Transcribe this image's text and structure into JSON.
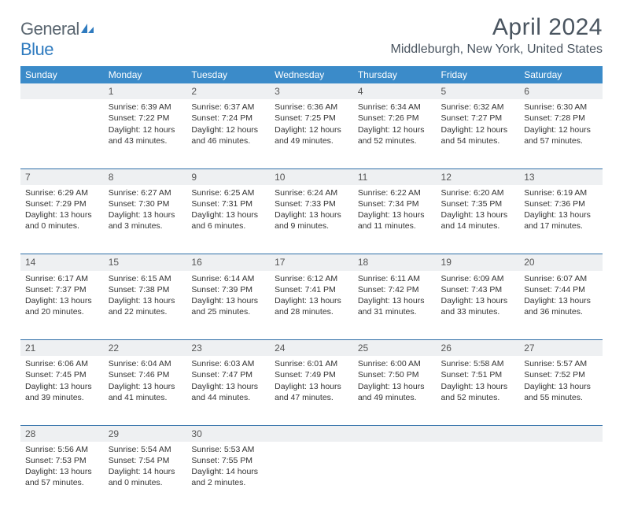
{
  "logo": {
    "word1": "General",
    "word2": "Blue"
  },
  "title": "April 2024",
  "location": "Middleburgh, New York, United States",
  "colors": {
    "header_bg": "#3b8bc9",
    "header_text": "#ffffff",
    "daynum_bg": "#eef0f2",
    "row_border": "#2f6fa8",
    "text": "#333333",
    "title_text": "#4a5560",
    "logo_gray": "#5a6670",
    "logo_blue": "#2f7bbf"
  },
  "day_headers": [
    "Sunday",
    "Monday",
    "Tuesday",
    "Wednesday",
    "Thursday",
    "Friday",
    "Saturday"
  ],
  "weeks": [
    [
      null,
      {
        "n": "1",
        "sr": "6:39 AM",
        "ss": "7:22 PM",
        "dl": "12 hours and 43 minutes."
      },
      {
        "n": "2",
        "sr": "6:37 AM",
        "ss": "7:24 PM",
        "dl": "12 hours and 46 minutes."
      },
      {
        "n": "3",
        "sr": "6:36 AM",
        "ss": "7:25 PM",
        "dl": "12 hours and 49 minutes."
      },
      {
        "n": "4",
        "sr": "6:34 AM",
        "ss": "7:26 PM",
        "dl": "12 hours and 52 minutes."
      },
      {
        "n": "5",
        "sr": "6:32 AM",
        "ss": "7:27 PM",
        "dl": "12 hours and 54 minutes."
      },
      {
        "n": "6",
        "sr": "6:30 AM",
        "ss": "7:28 PM",
        "dl": "12 hours and 57 minutes."
      }
    ],
    [
      {
        "n": "7",
        "sr": "6:29 AM",
        "ss": "7:29 PM",
        "dl": "13 hours and 0 minutes."
      },
      {
        "n": "8",
        "sr": "6:27 AM",
        "ss": "7:30 PM",
        "dl": "13 hours and 3 minutes."
      },
      {
        "n": "9",
        "sr": "6:25 AM",
        "ss": "7:31 PM",
        "dl": "13 hours and 6 minutes."
      },
      {
        "n": "10",
        "sr": "6:24 AM",
        "ss": "7:33 PM",
        "dl": "13 hours and 9 minutes."
      },
      {
        "n": "11",
        "sr": "6:22 AM",
        "ss": "7:34 PM",
        "dl": "13 hours and 11 minutes."
      },
      {
        "n": "12",
        "sr": "6:20 AM",
        "ss": "7:35 PM",
        "dl": "13 hours and 14 minutes."
      },
      {
        "n": "13",
        "sr": "6:19 AM",
        "ss": "7:36 PM",
        "dl": "13 hours and 17 minutes."
      }
    ],
    [
      {
        "n": "14",
        "sr": "6:17 AM",
        "ss": "7:37 PM",
        "dl": "13 hours and 20 minutes."
      },
      {
        "n": "15",
        "sr": "6:15 AM",
        "ss": "7:38 PM",
        "dl": "13 hours and 22 minutes."
      },
      {
        "n": "16",
        "sr": "6:14 AM",
        "ss": "7:39 PM",
        "dl": "13 hours and 25 minutes."
      },
      {
        "n": "17",
        "sr": "6:12 AM",
        "ss": "7:41 PM",
        "dl": "13 hours and 28 minutes."
      },
      {
        "n": "18",
        "sr": "6:11 AM",
        "ss": "7:42 PM",
        "dl": "13 hours and 31 minutes."
      },
      {
        "n": "19",
        "sr": "6:09 AM",
        "ss": "7:43 PM",
        "dl": "13 hours and 33 minutes."
      },
      {
        "n": "20",
        "sr": "6:07 AM",
        "ss": "7:44 PM",
        "dl": "13 hours and 36 minutes."
      }
    ],
    [
      {
        "n": "21",
        "sr": "6:06 AM",
        "ss": "7:45 PM",
        "dl": "13 hours and 39 minutes."
      },
      {
        "n": "22",
        "sr": "6:04 AM",
        "ss": "7:46 PM",
        "dl": "13 hours and 41 minutes."
      },
      {
        "n": "23",
        "sr": "6:03 AM",
        "ss": "7:47 PM",
        "dl": "13 hours and 44 minutes."
      },
      {
        "n": "24",
        "sr": "6:01 AM",
        "ss": "7:49 PM",
        "dl": "13 hours and 47 minutes."
      },
      {
        "n": "25",
        "sr": "6:00 AM",
        "ss": "7:50 PM",
        "dl": "13 hours and 49 minutes."
      },
      {
        "n": "26",
        "sr": "5:58 AM",
        "ss": "7:51 PM",
        "dl": "13 hours and 52 minutes."
      },
      {
        "n": "27",
        "sr": "5:57 AM",
        "ss": "7:52 PM",
        "dl": "13 hours and 55 minutes."
      }
    ],
    [
      {
        "n": "28",
        "sr": "5:56 AM",
        "ss": "7:53 PM",
        "dl": "13 hours and 57 minutes."
      },
      {
        "n": "29",
        "sr": "5:54 AM",
        "ss": "7:54 PM",
        "dl": "14 hours and 0 minutes."
      },
      {
        "n": "30",
        "sr": "5:53 AM",
        "ss": "7:55 PM",
        "dl": "14 hours and 2 minutes."
      },
      null,
      null,
      null,
      null
    ]
  ],
  "labels": {
    "sunrise": "Sunrise:",
    "sunset": "Sunset:",
    "daylight": "Daylight:"
  }
}
